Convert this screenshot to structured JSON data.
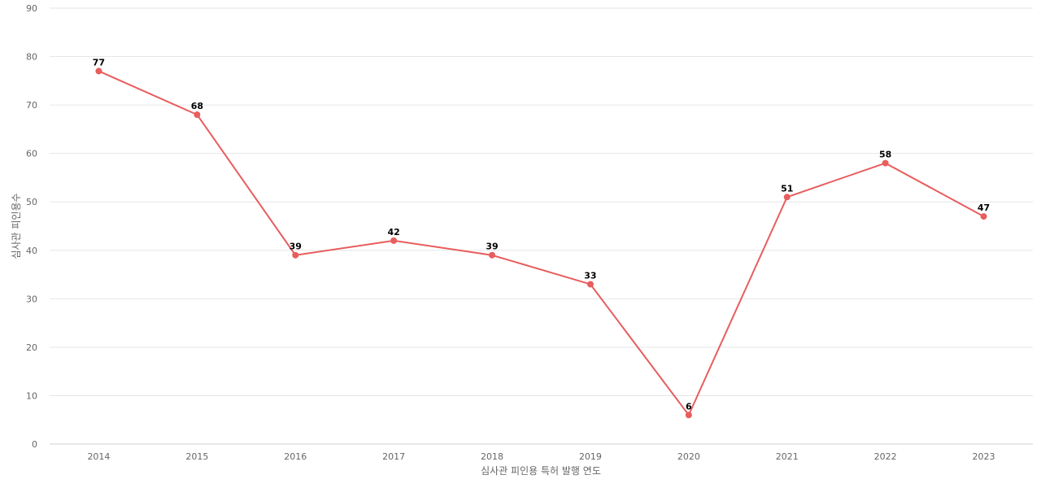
{
  "chart_data": {
    "type": "line",
    "x": [
      "2014",
      "2015",
      "2016",
      "2017",
      "2018",
      "2019",
      "2020",
      "2021",
      "2022",
      "2023"
    ],
    "series": [
      {
        "values": [
          77,
          68,
          39,
          42,
          39,
          33,
          6,
          51,
          58,
          47
        ]
      }
    ],
    "xlabel": "심사관 피인용 특허 발행 연도",
    "ylabel": "심사관 피인용수",
    "ylim": [
      0,
      90
    ],
    "yticks": [
      0,
      10,
      20,
      30,
      40,
      50,
      60,
      70,
      80,
      90
    ],
    "grid": true,
    "data_labels": true,
    "colors": {
      "line": "#e85d5d",
      "grid": "#e6e6e6",
      "tick_text": "#666666",
      "label_text": "#000000"
    }
  }
}
